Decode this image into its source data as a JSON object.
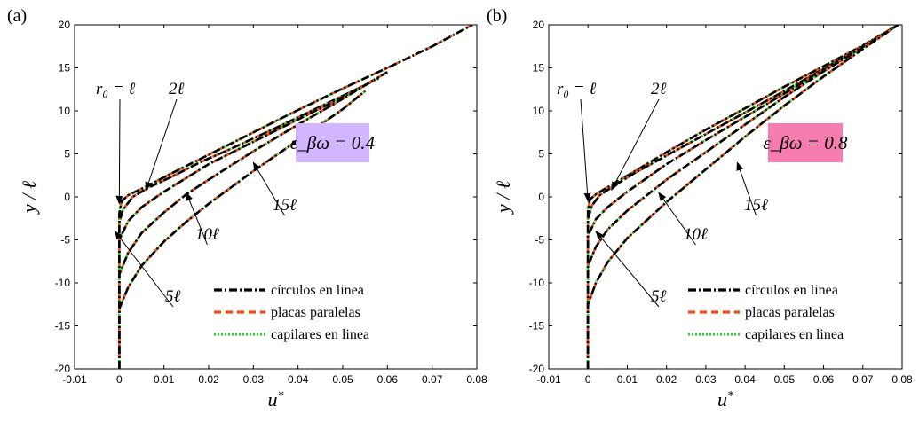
{
  "chart_data": [
    {
      "type": "line",
      "panel_label": "(a)",
      "xlabel": "u*",
      "ylabel": "y / ℓ",
      "xlim": [
        -0.01,
        0.08
      ],
      "ylim": [
        -20,
        20
      ],
      "xticks": [
        "-0.01",
        "0",
        "0.01",
        "0.02",
        "0.03",
        "0.04",
        "0.05",
        "0.06",
        "0.07",
        "0.08"
      ],
      "yticks": [
        "-20",
        "-15",
        "-10",
        "-5",
        "0",
        "5",
        "10",
        "15",
        "20"
      ],
      "parameter_box": {
        "text": "ε_βω = 0.4",
        "color": "#d2b6ff"
      },
      "legend": {
        "placement": "bottom-right",
        "entries": [
          {
            "name": "círculos en linea",
            "color": "#000000",
            "style": "dashdot"
          },
          {
            "name": "placas paralelas",
            "color": "#e8501c",
            "style": "dashed"
          },
          {
            "name": "capilares en linea",
            "color": "#2ed32e",
            "style": "dotted"
          }
        ]
      },
      "curve_labels": [
        {
          "text": "r₀ = ℓ",
          "tip": [
            0,
            -0.8
          ]
        },
        {
          "text": "2ℓ",
          "tip": [
            0.006,
            0.8
          ]
        },
        {
          "text": "5ℓ",
          "tip": [
            -0.001,
            -4
          ]
        },
        {
          "text": "10ℓ",
          "tip": [
            0.015,
            0.5
          ]
        },
        {
          "text": "15ℓ",
          "tip": [
            0.03,
            4
          ]
        }
      ],
      "curves": [
        {
          "r0": "ℓ",
          "x": [
            0,
            0,
            0.0005,
            0.002,
            0.006,
            0.012,
            0.02,
            0.03,
            0.04,
            0.05,
            0.06,
            0.07,
            0.079
          ],
          "y": [
            -20,
            -2,
            -0.5,
            0.2,
            1.2,
            2.8,
            4.9,
            7.5,
            10.1,
            12.6,
            15.0,
            17.5,
            20
          ]
        },
        {
          "r0": "2ℓ",
          "x": [
            0,
            0,
            0.0008,
            0.003,
            0.007,
            0.012,
            0.018,
            0.025,
            0.035,
            0.045,
            0.055,
            0.06
          ],
          "y": [
            -20,
            -3,
            -1.5,
            0,
            1.2,
            2.4,
            4.0,
            5.6,
            8.0,
            10.5,
            13.0,
            14.5
          ]
        },
        {
          "r0": "5ℓ",
          "x": [
            0,
            0,
            0.002,
            0.005,
            0.01,
            0.015,
            0.02,
            0.03,
            0.04,
            0.05,
            0.058
          ],
          "y": [
            -20,
            -5,
            -2.8,
            -1.2,
            0.6,
            2.2,
            3.8,
            6.4,
            9.0,
            11.6,
            13.8
          ]
        },
        {
          "r0": "10ℓ",
          "x": [
            0,
            0,
            0.002,
            0.005,
            0.01,
            0.015,
            0.02,
            0.03,
            0.04,
            0.05,
            0.057
          ],
          "y": [
            -20,
            -9,
            -6.5,
            -4.2,
            -1.8,
            0.3,
            2.0,
            5.3,
            8.4,
            11.4,
            13.6
          ]
        },
        {
          "r0": "15ℓ",
          "x": [
            0,
            0,
            0.002,
            0.005,
            0.01,
            0.015,
            0.02,
            0.03,
            0.04,
            0.05,
            0.055
          ],
          "y": [
            -20,
            -13,
            -10.5,
            -8.0,
            -5.2,
            -2.9,
            -0.8,
            3.0,
            6.6,
            10.2,
            12.3
          ]
        }
      ]
    },
    {
      "type": "line",
      "panel_label": "(b)",
      "xlabel": "u*",
      "ylabel": "y / ℓ",
      "xlim": [
        -0.01,
        0.08
      ],
      "ylim": [
        -20,
        20
      ],
      "xticks": [
        "-0.01",
        "0",
        "0.01",
        "0.02",
        "0.03",
        "0.04",
        "0.05",
        "0.06",
        "0.07",
        "0.08"
      ],
      "yticks": [
        "-20",
        "-15",
        "-10",
        "-5",
        "0",
        "5",
        "10",
        "15",
        "20"
      ],
      "parameter_box": {
        "text": "ε_βω = 0.8",
        "color": "#f77cb0"
      },
      "legend": {
        "placement": "bottom-right",
        "entries": [
          {
            "name": "círculos en linea",
            "color": "#000000",
            "style": "dashdot"
          },
          {
            "name": "placas paralelas",
            "color": "#e8501c",
            "style": "dashed"
          },
          {
            "name": "capilares en linea",
            "color": "#2ed32e",
            "style": "dotted"
          }
        ]
      },
      "curve_labels": [
        {
          "text": "r₀ = ℓ",
          "tip": [
            0,
            -0.5
          ]
        },
        {
          "text": "2ℓ",
          "tip": [
            0.006,
            0.8
          ]
        },
        {
          "text": "5ℓ",
          "tip": [
            0.002,
            -4
          ]
        },
        {
          "text": "10ℓ",
          "tip": [
            0.018,
            0.5
          ]
        },
        {
          "text": "15ℓ",
          "tip": [
            0.038,
            4
          ]
        }
      ],
      "curves": [
        {
          "r0": "ℓ",
          "x": [
            0,
            0,
            0.0005,
            0.002,
            0.006,
            0.012,
            0.02,
            0.03,
            0.04,
            0.05,
            0.06,
            0.07,
            0.079
          ],
          "y": [
            -20,
            -1.5,
            -0.3,
            0.3,
            1.4,
            3.0,
            5.2,
            7.8,
            10.3,
            12.8,
            15.2,
            17.6,
            20
          ]
        },
        {
          "r0": "2ℓ",
          "x": [
            0,
            0,
            0.001,
            0.003,
            0.007,
            0.012,
            0.02,
            0.03,
            0.04,
            0.05,
            0.06,
            0.07,
            0.079
          ],
          "y": [
            -20,
            -2.5,
            -1.0,
            0.2,
            1.4,
            2.8,
            4.8,
            7.3,
            9.8,
            12.3,
            14.9,
            17.5,
            20
          ]
        },
        {
          "r0": "5ℓ",
          "x": [
            0,
            0,
            0.002,
            0.005,
            0.01,
            0.02,
            0.03,
            0.04,
            0.05,
            0.06,
            0.07,
            0.079
          ],
          "y": [
            -20,
            -4.5,
            -2.6,
            -1.2,
            0.6,
            3.8,
            6.6,
            9.3,
            12.0,
            14.8,
            17.5,
            20
          ]
        },
        {
          "r0": "10ℓ",
          "x": [
            0,
            0,
            0.002,
            0.005,
            0.01,
            0.02,
            0.03,
            0.04,
            0.05,
            0.06,
            0.07,
            0.079
          ],
          "y": [
            -20,
            -8,
            -5.8,
            -3.8,
            -1.6,
            2.0,
            5.2,
            8.4,
            11.6,
            14.6,
            17.4,
            20
          ]
        },
        {
          "r0": "15ℓ",
          "x": [
            0,
            0,
            0.002,
            0.005,
            0.01,
            0.02,
            0.03,
            0.04,
            0.05,
            0.06,
            0.07,
            0.079
          ],
          "y": [
            -20,
            -12.5,
            -10.0,
            -7.6,
            -4.8,
            -0.6,
            3.2,
            7.0,
            10.6,
            14.0,
            17.2,
            20
          ]
        }
      ]
    }
  ]
}
